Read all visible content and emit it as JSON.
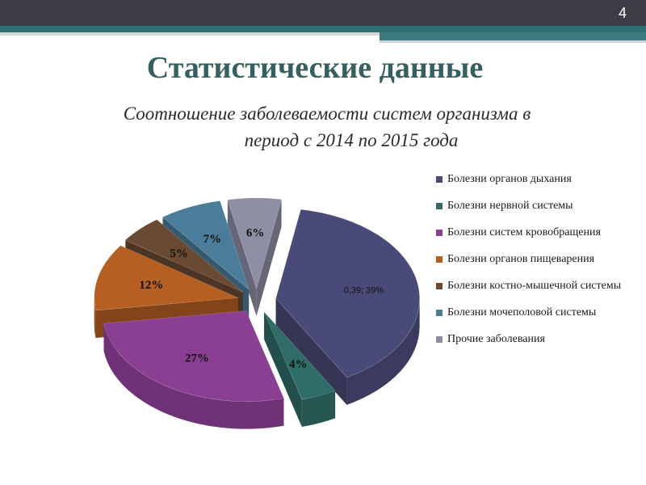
{
  "slide": {
    "number": "4"
  },
  "title": "Статистические данные",
  "subtitle_line1": "Соотношение заболеваемости систем организма в",
  "subtitle_line2": "период с 2014 по 2015 года",
  "chart_data": {
    "type": "pie",
    "title": "",
    "labels": [
      "Болезни органов дыхания",
      "Болезни нервной системы",
      "Болезни систем кровобращения",
      "Болезни органов пищеварения",
      "Болезни костно-мышечной системы",
      "Болезни мочеполовой системы",
      "Прочие заболевания"
    ],
    "values": [
      39,
      4,
      27,
      12,
      5,
      7,
      6
    ],
    "data_labels": [
      "0,39; 39%",
      "4%",
      "27%",
      "12%",
      "5%",
      "7%",
      "6%"
    ],
    "colors": [
      "#4a4a78",
      "#2f6d68",
      "#8b3f93",
      "#b55f22",
      "#6b4a33",
      "#4a7d99",
      "#8e8ea5"
    ],
    "exploded": true,
    "three_d": true,
    "legend_position": "right"
  }
}
